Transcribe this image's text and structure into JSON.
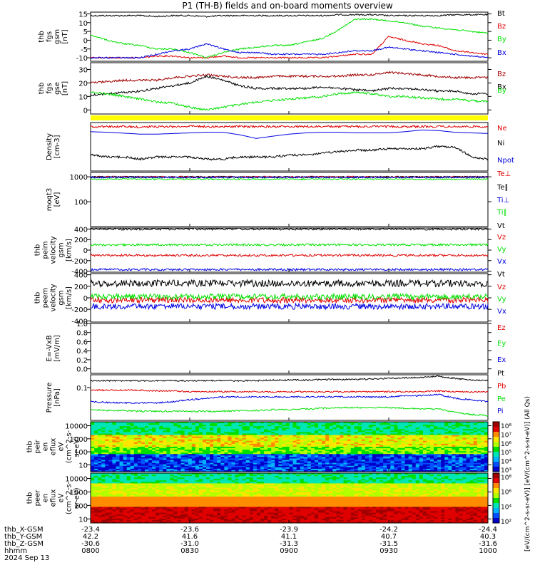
{
  "title": "P1 (TH-B) fields and on-board moments overview",
  "colors": {
    "black": "#000000",
    "red": "#e00000",
    "green": "#00e000",
    "blue": "#0000e0",
    "darkred": "#a00000",
    "yellow": "#ffff00"
  },
  "time_axis": {
    "label": "hhmm",
    "date": "2024 Sep 13",
    "ticks": [
      "0800",
      "0830",
      "0900",
      "0930",
      "1000"
    ],
    "rows": [
      {
        "label": "thb_X-GSM",
        "values": [
          "-23.4",
          "-23.6",
          "-23.9",
          "-24.2",
          "-24.4"
        ]
      },
      {
        "label": "thb_Y-GSM",
        "values": [
          "42.2",
          "41.6",
          "41.1",
          "40.7",
          "40.3"
        ]
      },
      {
        "label": "thb_Z-GSM",
        "values": [
          "-30.6",
          "-31.0",
          "-31.3",
          "-31.5",
          "-31.6"
        ]
      }
    ]
  },
  "chart_data": [
    {
      "type": "line",
      "ylabel": [
        "thb",
        "fgs",
        "gsm",
        "[nT]"
      ],
      "ylim": [
        -12,
        16
      ],
      "yticks": [
        "15",
        "10",
        "5",
        "0",
        "-5",
        "-10"
      ],
      "series": [
        {
          "name": "Bt",
          "color": "black",
          "values": [
            14,
            14,
            14,
            14,
            13.5,
            14,
            14,
            13.5,
            14,
            14,
            14,
            14,
            14,
            14,
            14,
            14.5,
            14.5,
            14.5,
            14,
            14,
            14,
            14,
            14.5,
            14.5,
            14.5
          ]
        },
        {
          "name": "Bz",
          "color": "red",
          "values": [
            -10,
            -10,
            -10,
            -10,
            -9,
            -9,
            -10,
            -10,
            -9,
            -10,
            -10,
            -10,
            -10,
            -10,
            -10,
            -9,
            -8,
            -8,
            2,
            0,
            -2,
            -3,
            -6,
            -7,
            -8
          ]
        },
        {
          "name": "By",
          "color": "green",
          "values": [
            3,
            0,
            -2,
            -3,
            -5,
            -5,
            -7,
            -10,
            -7,
            -5,
            -4,
            -3,
            -3,
            -1,
            1,
            6,
            12,
            12,
            11,
            10,
            8,
            7,
            6,
            5,
            4
          ]
        },
        {
          "name": "Bx",
          "color": "blue",
          "values": [
            -10,
            -10,
            -10,
            -10,
            -8,
            -6,
            -5,
            -2,
            -5,
            -7,
            -7,
            -8,
            -8,
            -8,
            -8,
            -7,
            -6,
            -6,
            -4,
            -5,
            -6,
            -7,
            -8,
            -9,
            -10
          ]
        }
      ]
    },
    {
      "type": "line",
      "ylabel": [
        "thb",
        "fgs",
        "gse",
        "[nT]"
      ],
      "ylim": [
        -3,
        35
      ],
      "yticks": [
        "30",
        "20",
        "10",
        "0"
      ],
      "series": [
        {
          "name": "Bz",
          "color": "darkred",
          "values": [
            20,
            21,
            22,
            22,
            22,
            24,
            25,
            26,
            25,
            24,
            24,
            25,
            25,
            25,
            25,
            25,
            26,
            26,
            28,
            27,
            26,
            25,
            24,
            24,
            24
          ]
        },
        {
          "name": "Bx",
          "color": "black",
          "values": [
            11,
            12,
            13,
            14,
            16,
            18,
            20,
            25,
            22,
            18,
            16,
            16,
            16,
            16,
            17,
            16,
            15,
            14,
            16,
            16,
            15,
            14,
            14,
            12,
            12
          ]
        },
        {
          "name": "By",
          "color": "green",
          "values": [
            13,
            12,
            10,
            8,
            6,
            5,
            2,
            0,
            2,
            4,
            6,
            7,
            8,
            9,
            10,
            12,
            13,
            12,
            10,
            10,
            9,
            8,
            8,
            7,
            6
          ]
        }
      ]
    },
    {
      "type": "line",
      "ylabel": [
        "Density",
        "[cm-3]"
      ],
      "yscale": "log",
      "yticks": [],
      "series": [
        {
          "name": "Ne",
          "color": "red",
          "values": [
            0.9,
            0.9,
            0.9,
            0.88,
            0.9,
            0.9,
            0.92,
            0.9,
            0.9,
            0.9,
            0.9,
            0.9,
            0.9,
            0.9,
            0.9,
            0.9,
            0.9,
            0.9,
            0.9,
            0.9,
            0.9,
            0.9,
            0.9,
            0.9,
            0.9
          ]
        },
        {
          "name": "Ni",
          "color": "black",
          "values": [
            0.22,
            0.2,
            0.2,
            0.18,
            0.2,
            0.2,
            0.2,
            0.18,
            0.18,
            0.2,
            0.2,
            0.2,
            0.22,
            0.22,
            0.24,
            0.26,
            0.28,
            0.28,
            0.3,
            0.3,
            0.3,
            0.34,
            0.32,
            0.2,
            0.18
          ]
        },
        {
          "name": "Npot",
          "color": "blue",
          "values": [
            0.7,
            0.68,
            0.65,
            0.62,
            0.62,
            0.64,
            0.66,
            0.68,
            0.68,
            0.6,
            0.5,
            0.56,
            0.62,
            0.66,
            0.68,
            0.68,
            0.66,
            0.66,
            0.66,
            0.7,
            0.76,
            0.74,
            0.68,
            0.66,
            0.64
          ]
        }
      ]
    },
    {
      "type": "line",
      "ylabel": [
        "moqt3",
        "[eV]"
      ],
      "yscale": "log",
      "ylim": [
        10,
        1500
      ],
      "yticks": [
        "1000",
        "100"
      ],
      "series": [
        {
          "name": "Te⊥",
          "color": "red",
          "values": [
            1000,
            1000,
            1000,
            1000,
            1000,
            1000,
            1000,
            1000,
            1000,
            1000,
            1000,
            1000,
            1000,
            1000,
            1000,
            1000,
            1000,
            1000,
            1000,
            1000,
            1000,
            1000,
            1000,
            1000,
            1000
          ]
        },
        {
          "name": "Te∥",
          "color": "black",
          "values": [
            980,
            980,
            980,
            980,
            980,
            980,
            980,
            980,
            980,
            980,
            980,
            980,
            980,
            980,
            980,
            980,
            980,
            980,
            980,
            980,
            980,
            980,
            980,
            980,
            980
          ]
        },
        {
          "name": "Ti⊥",
          "color": "blue",
          "values": [
            950,
            950,
            950,
            950,
            950,
            950,
            950,
            950,
            950,
            950,
            950,
            950,
            950,
            950,
            950,
            950,
            950,
            950,
            950,
            950,
            950,
            950,
            950,
            950,
            950
          ]
        },
        {
          "name": "Ti∥",
          "color": "green",
          "values": [
            800,
            800,
            800,
            800,
            800,
            800,
            800,
            800,
            800,
            800,
            800,
            800,
            800,
            800,
            800,
            800,
            800,
            800,
            800,
            800,
            800,
            800,
            800,
            800,
            800
          ]
        }
      ]
    },
    {
      "type": "line",
      "ylabel": [
        "thb",
        "peim",
        "velocity",
        "gsm",
        "[km/s]"
      ],
      "ylim": [
        -420,
        420
      ],
      "yticks": [
        "400",
        "200",
        "0",
        "-200",
        "-400"
      ],
      "series": [
        {
          "name": "Vt",
          "color": "black",
          "values": [
            400,
            400,
            400,
            400,
            400,
            400,
            400,
            400,
            400,
            400,
            400,
            400,
            400,
            400,
            400,
            400,
            400,
            400,
            400,
            400,
            400,
            400,
            400,
            400,
            400
          ]
        },
        {
          "name": "Vz",
          "color": "red",
          "values": [
            -100,
            -100,
            -100,
            -100,
            -100,
            -100,
            -100,
            -100,
            -100,
            -100,
            -100,
            -100,
            -100,
            -100,
            -100,
            -100,
            -100,
            -100,
            -100,
            -100,
            -100,
            -100,
            -100,
            -100,
            -100
          ]
        },
        {
          "name": "Vy",
          "color": "green",
          "values": [
            100,
            100,
            100,
            100,
            100,
            100,
            100,
            100,
            100,
            100,
            100,
            100,
            100,
            100,
            100,
            100,
            100,
            100,
            100,
            100,
            100,
            100,
            100,
            100,
            100
          ]
        },
        {
          "name": "Vx",
          "color": "blue",
          "values": [
            -370,
            -370,
            -370,
            -370,
            -370,
            -370,
            -370,
            -370,
            -370,
            -370,
            -370,
            -370,
            -370,
            -370,
            -370,
            -370,
            -370,
            -370,
            -370,
            -370,
            -370,
            -370,
            -370,
            -370,
            -370
          ]
        }
      ]
    },
    {
      "type": "line",
      "ylabel": [
        "thb",
        "peem",
        "velocity",
        "gsm",
        "[km/s]"
      ],
      "ylim": [
        -420,
        420
      ],
      "yticks": [
        "400",
        "200",
        "0",
        "-200",
        "-400"
      ],
      "series": [
        {
          "name": "Vt",
          "color": "black",
          "values": [
            250,
            250,
            250,
            250,
            250,
            250,
            250,
            250,
            250,
            250,
            250,
            250,
            250,
            250,
            250,
            250,
            250,
            250,
            250,
            250,
            250,
            250,
            250,
            250,
            250
          ]
        },
        {
          "name": "Vz",
          "color": "red",
          "values": [
            -40,
            -40,
            -40,
            -40,
            -40,
            -40,
            -40,
            -40,
            -40,
            -40,
            -40,
            -40,
            -40,
            -40,
            -40,
            -40,
            -40,
            -40,
            -40,
            -40,
            -40,
            -40,
            -40,
            -40,
            -40
          ]
        },
        {
          "name": "Vy",
          "color": "green",
          "values": [
            20,
            20,
            20,
            20,
            20,
            20,
            20,
            20,
            20,
            20,
            20,
            20,
            20,
            20,
            20,
            20,
            20,
            20,
            20,
            20,
            20,
            20,
            20,
            20,
            20
          ]
        },
        {
          "name": "Vx",
          "color": "blue",
          "values": [
            -150,
            -150,
            -150,
            -150,
            -150,
            -150,
            -150,
            -150,
            -150,
            -150,
            -150,
            -150,
            -150,
            -150,
            -150,
            -150,
            -150,
            -150,
            -150,
            -150,
            -150,
            -150,
            -150,
            -150,
            -150
          ]
        }
      ]
    },
    {
      "type": "line",
      "ylabel": [
        "E=-VxB",
        "[mV/m]"
      ],
      "ylim": [
        -0.1,
        1.0
      ],
      "yticks": [
        "1.0",
        "0.8",
        "0.6",
        "0.4",
        "0.2",
        "0.0"
      ],
      "series": [
        {
          "name": "Ez",
          "color": "red",
          "values": []
        },
        {
          "name": "Ey",
          "color": "green",
          "values": []
        },
        {
          "name": "Ex",
          "color": "blue",
          "values": []
        }
      ]
    },
    {
      "type": "line",
      "ylabel": [
        "Pressure",
        "[nPa]"
      ],
      "yscale": "log",
      "ylim": [
        0.006,
        0.3
      ],
      "yticks": [
        "0.1"
      ],
      "series": [
        {
          "name": "Pt",
          "color": "black",
          "values": [
            0.18,
            0.18,
            0.18,
            0.18,
            0.18,
            0.18,
            0.18,
            0.18,
            0.18,
            0.18,
            0.18,
            0.19,
            0.19,
            0.19,
            0.2,
            0.2,
            0.2,
            0.21,
            0.22,
            0.23,
            0.24,
            0.26,
            0.22,
            0.19,
            0.18
          ]
        },
        {
          "name": "Pb",
          "color": "red",
          "values": [
            0.08,
            0.08,
            0.08,
            0.08,
            0.075,
            0.075,
            0.07,
            0.07,
            0.07,
            0.07,
            0.07,
            0.07,
            0.07,
            0.07,
            0.07,
            0.07,
            0.07,
            0.07,
            0.07,
            0.07,
            0.07,
            0.075,
            0.07,
            0.07,
            0.07
          ]
        },
        {
          "name": "Pe",
          "color": "green",
          "values": [
            0.015,
            0.014,
            0.014,
            0.013,
            0.013,
            0.013,
            0.013,
            0.013,
            0.013,
            0.014,
            0.014,
            0.015,
            0.015,
            0.016,
            0.017,
            0.018,
            0.018,
            0.018,
            0.018,
            0.017,
            0.016,
            0.016,
            0.012,
            0.01,
            0.009
          ]
        },
        {
          "name": "Pi",
          "color": "blue",
          "values": [
            0.03,
            0.028,
            0.027,
            0.027,
            0.027,
            0.03,
            0.035,
            0.04,
            0.045,
            0.045,
            0.045,
            0.045,
            0.045,
            0.045,
            0.045,
            0.045,
            0.045,
            0.045,
            0.045,
            0.05,
            0.05,
            0.055,
            0.04,
            0.035,
            0.03
          ]
        }
      ]
    },
    {
      "type": "heatmap",
      "ylabel": [
        "thb",
        "peir",
        "en",
        "eflux",
        "eV",
        "(cm^2-s-",
        "sr-eV)"
      ],
      "yscale": "log",
      "ylim": [
        3,
        20000
      ],
      "yticks": [
        "10000",
        "1000",
        "100",
        "10"
      ]
    },
    {
      "type": "heatmap",
      "ylabel": [
        "thb",
        "peer",
        "en",
        "eflux",
        "eV",
        "(cm^2-s-",
        "sr-eV)"
      ],
      "yscale": "log",
      "ylim": [
        5,
        25000
      ],
      "yticks": [
        "10000",
        "1000",
        "100",
        "10"
      ]
    }
  ],
  "colorbar": {
    "label": "[eV/(cm^2-s-sr-eV)] [eV/(cm^2-s-sr-eV)] (All Qs)",
    "upper_ticks": [
      "10⁸",
      "10⁷",
      "10⁶",
      "10⁵",
      "10⁴",
      "10³"
    ],
    "lower_ticks": [
      "10⁸",
      "10⁶",
      "10⁴",
      "10²"
    ]
  }
}
